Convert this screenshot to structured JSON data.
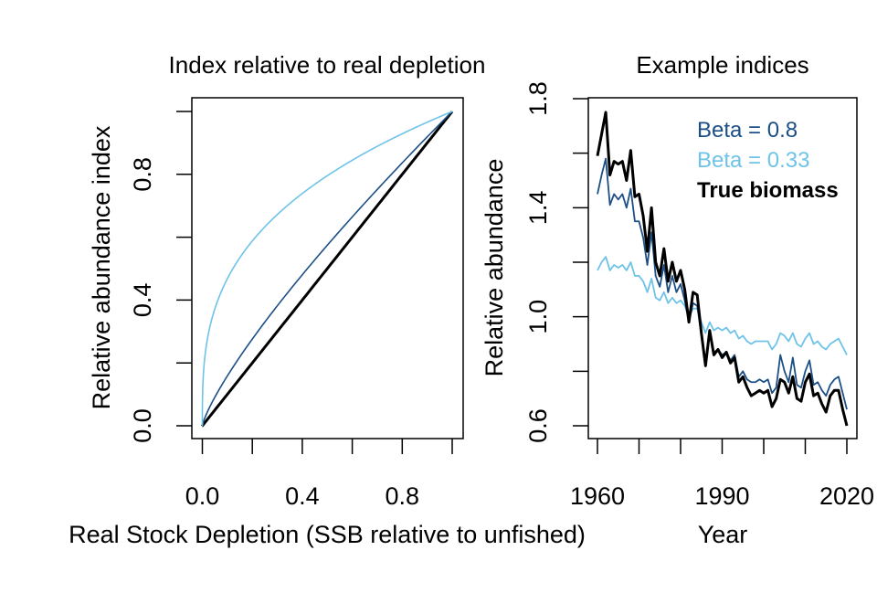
{
  "chart_data": [
    {
      "type": "line",
      "title": "Index relative to real depletion",
      "xlabel": "Real Stock Depletion (SSB relative to unfished)",
      "ylabel": "Relative abundance index",
      "xlim": [
        0,
        1
      ],
      "ylim": [
        0,
        1
      ],
      "x_ticks": [
        "0.0",
        "0.4",
        "0.8"
      ],
      "y_ticks": [
        "0.0",
        "0.4",
        "0.8"
      ],
      "x_tick_values": [
        0,
        0.4,
        0.8
      ],
      "y_tick_values": [
        0,
        0.4,
        0.8
      ],
      "x_minor_ticks": [
        0,
        0.2,
        0.4,
        0.6,
        0.8,
        1.0
      ],
      "y_minor_ticks": [
        0,
        0.2,
        0.4,
        0.6,
        0.8,
        1.0
      ],
      "series": [
        {
          "color": "#000000",
          "exponent": 1.0
        },
        {
          "color": "#1b4f86",
          "exponent": 0.8
        },
        {
          "color": "#6ec3e8",
          "exponent": 0.33
        }
      ]
    },
    {
      "type": "line",
      "title": "Example indices",
      "xlabel": "Year",
      "ylabel": "Relative abundance",
      "xlim": [
        1960,
        2020
      ],
      "ylim": [
        0.6,
        1.8
      ],
      "x_ticks": [
        "1960",
        "1990",
        "2020"
      ],
      "y_ticks": [
        "0.6",
        "1.0",
        "1.4",
        "1.8"
      ],
      "x_tick_values": [
        1960,
        1990,
        2020
      ],
      "y_tick_values": [
        0.6,
        1.0,
        1.4,
        1.8
      ],
      "x_minor_ticks": [
        1960,
        1970,
        1980,
        1990,
        2000,
        2010,
        2020
      ],
      "y_minor_ticks": [
        0.6,
        0.8,
        1.0,
        1.2,
        1.4,
        1.6,
        1.8
      ],
      "legend": [
        {
          "label": "Beta = 0.8",
          "color": "#1b4f86",
          "bold": false
        },
        {
          "label": "Beta = 0.33",
          "color": "#6ec3e8",
          "bold": false
        },
        {
          "label": "True biomass",
          "color": "#000000",
          "bold": true
        }
      ],
      "x": [
        1960,
        1961,
        1962,
        1963,
        1964,
        1965,
        1966,
        1967,
        1968,
        1969,
        1970,
        1971,
        1972,
        1973,
        1974,
        1975,
        1976,
        1977,
        1978,
        1979,
        1980,
        1981,
        1982,
        1983,
        1984,
        1985,
        1986,
        1987,
        1988,
        1989,
        1990,
        1991,
        1992,
        1993,
        1994,
        1995,
        1996,
        1997,
        1998,
        1999,
        2000,
        2001,
        2002,
        2003,
        2004,
        2005,
        2006,
        2007,
        2008,
        2009,
        2010,
        2011,
        2012,
        2013,
        2014,
        2015,
        2016,
        2017,
        2018,
        2019,
        2020
      ],
      "series": [
        {
          "name": "True biomass",
          "color": "#000000",
          "values": [
            1.59,
            1.67,
            1.75,
            1.52,
            1.57,
            1.56,
            1.57,
            1.5,
            1.61,
            1.44,
            1.45,
            1.37,
            1.24,
            1.4,
            1.2,
            1.15,
            1.25,
            1.13,
            1.2,
            1.13,
            1.17,
            1.1,
            0.98,
            1.09,
            1.08,
            0.94,
            0.82,
            0.95,
            0.86,
            0.88,
            0.85,
            0.87,
            0.83,
            0.85,
            0.76,
            0.78,
            0.74,
            0.71,
            0.72,
            0.73,
            0.72,
            0.73,
            0.67,
            0.7,
            0.77,
            0.76,
            0.72,
            0.78,
            0.7,
            0.69,
            0.76,
            0.79,
            0.71,
            0.72,
            0.68,
            0.65,
            0.71,
            0.73,
            0.73,
            0.66,
            0.6
          ]
        },
        {
          "name": "Beta = 0.8",
          "color": "#1b4f86",
          "values": [
            1.45,
            1.52,
            1.58,
            1.41,
            1.45,
            1.43,
            1.45,
            1.4,
            1.47,
            1.35,
            1.35,
            1.29,
            1.19,
            1.31,
            1.15,
            1.11,
            1.19,
            1.09,
            1.15,
            1.09,
            1.12,
            1.06,
            0.98,
            1.05,
            1.04,
            0.93,
            0.84,
            0.94,
            0.87,
            0.88,
            0.86,
            0.87,
            0.84,
            0.86,
            0.78,
            0.8,
            0.77,
            0.76,
            0.76,
            0.77,
            0.76,
            0.77,
            0.72,
            0.74,
            0.86,
            0.8,
            0.76,
            0.85,
            0.75,
            0.74,
            0.8,
            0.84,
            0.75,
            0.76,
            0.73,
            0.71,
            0.75,
            0.77,
            0.78,
            0.72,
            0.66
          ]
        },
        {
          "name": "Beta = 0.33",
          "color": "#6ec3e8",
          "values": [
            1.17,
            1.2,
            1.22,
            1.17,
            1.19,
            1.18,
            1.19,
            1.17,
            1.2,
            1.15,
            1.15,
            1.13,
            1.09,
            1.14,
            1.07,
            1.06,
            1.09,
            1.05,
            1.07,
            1.05,
            1.06,
            1.04,
            1.0,
            1.03,
            1.03,
            0.98,
            0.94,
            0.98,
            0.95,
            0.96,
            0.95,
            0.96,
            0.94,
            0.95,
            0.92,
            0.93,
            0.91,
            0.9,
            0.91,
            0.91,
            0.91,
            0.91,
            0.88,
            0.9,
            0.94,
            0.93,
            0.91,
            0.94,
            0.9,
            0.89,
            0.92,
            0.94,
            0.9,
            0.91,
            0.89,
            0.88,
            0.9,
            0.91,
            0.92,
            0.89,
            0.86
          ]
        }
      ]
    }
  ]
}
